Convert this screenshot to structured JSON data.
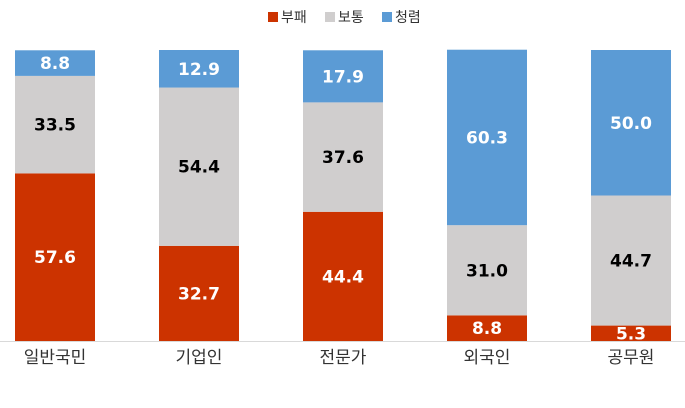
{
  "chart_data": {
    "type": "bar",
    "stacked": true,
    "categories": [
      "일반국민",
      "기업인",
      "전문가",
      "외국인",
      "공무원"
    ],
    "series": [
      {
        "name": "부패",
        "color": "#CC3300",
        "values": [
          57.6,
          32.7,
          44.4,
          8.8,
          5.3
        ]
      },
      {
        "name": "보통",
        "color": "#D0CECE",
        "values": [
          33.5,
          54.4,
          37.6,
          31.0,
          44.7
        ]
      },
      {
        "name": "청렴",
        "color": "#5B9BD5",
        "values": [
          8.8,
          12.9,
          17.9,
          60.3,
          50.0
        ]
      }
    ],
    "ylim": [
      0,
      100
    ],
    "legend": "top-center",
    "grid": false,
    "title": "",
    "xlabel": "",
    "ylabel": ""
  }
}
